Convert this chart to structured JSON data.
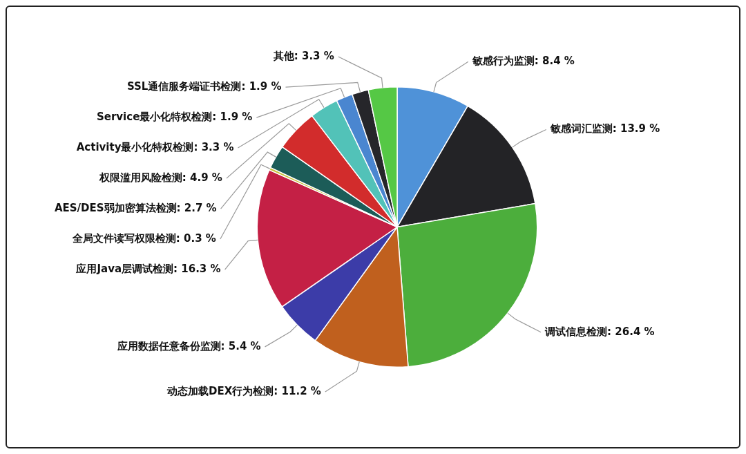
{
  "chart_data": {
    "type": "pie",
    "categories": [
      "敏感行为监测",
      "敏感词汇监测",
      "调试信息检测",
      "动态加载DEX行为检测",
      "应用数据任意备份监测",
      "应用Java层调试检测",
      "全局文件读写权限检测",
      "AES/DES弱加密算法检测",
      "权限滥用风险检测",
      "Activity最小化特权检测",
      "Service最小化特权检测",
      "SSL通信服务端证书检测",
      "其他"
    ],
    "values": [
      8.4,
      13.9,
      26.4,
      11.2,
      5.4,
      16.3,
      0.3,
      2.7,
      4.9,
      3.3,
      1.9,
      1.9,
      3.3
    ],
    "value_labels": [
      "8.4 %",
      "13.9 %",
      "26.4 %",
      "11.2 %",
      "5.4 %",
      "16.3 %",
      "0.3 %",
      "2.7 %",
      "4.9 %",
      "3.3 %",
      "1.9 %",
      "1.9 %",
      "3.3 %"
    ],
    "colors": [
      "#4f92d8",
      "#232326",
      "#4cae3c",
      "#c0601e",
      "#3c3ca8",
      "#c42045",
      "#c8c23c",
      "#1c5c58",
      "#d22c2c",
      "#52c2b8",
      "#4a86d0",
      "#26262a",
      "#55c845"
    ],
    "legend": false
  }
}
